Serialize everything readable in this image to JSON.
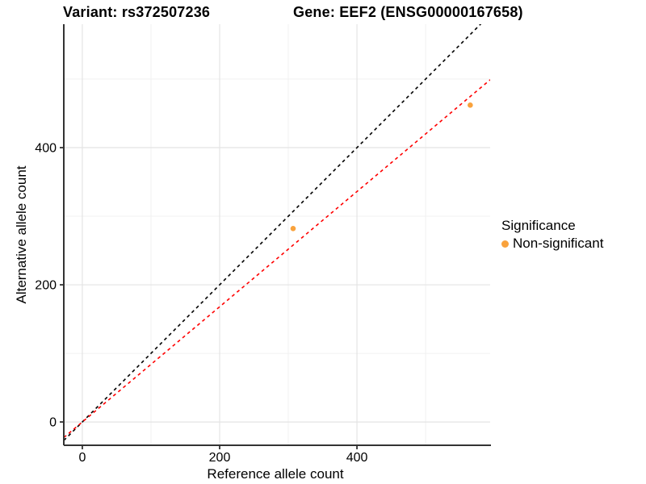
{
  "titles": {
    "variant": "Variant: rs372507236",
    "gene": "Gene: EEF2 (ENSG00000167658)"
  },
  "legend": {
    "title": "Significance",
    "items": [
      {
        "label": "Non-significant",
        "color": "#F9A23C",
        "shape": "circle"
      }
    ]
  },
  "chart_data": {
    "type": "scatter",
    "title": "Variant: rs372507236 | Gene: EEF2 (ENSG00000167658)",
    "xlabel": "Reference allele count",
    "ylabel": "Alternative allele count",
    "xlim": [
      -27,
      594
    ],
    "ylim": [
      -34,
      580
    ],
    "x_major_ticks": [
      0,
      200,
      400
    ],
    "x_minor_ticks": [
      100,
      300,
      500
    ],
    "y_major_ticks": [
      0,
      200,
      400
    ],
    "y_minor_ticks": [
      100,
      300,
      500
    ],
    "grid": true,
    "legend_position": "right",
    "series": [
      {
        "name": "Non-significant",
        "color": "#F9A23C",
        "points": [
          {
            "x": 307,
            "y": 282
          },
          {
            "x": 565,
            "y": 462
          }
        ]
      }
    ],
    "lines": [
      {
        "name": "identity-line",
        "slope": 1.0,
        "intercept": 0,
        "color": "#000000",
        "style": "dashed"
      },
      {
        "name": "fit-line",
        "slope": 0.84,
        "intercept": 0,
        "color": "#FF0000",
        "style": "dashed"
      }
    ],
    "colors": {
      "grid_major": "#E4E4E4",
      "grid_minor": "#F1F1F1",
      "axis": "#333333",
      "text": "#000000"
    }
  }
}
